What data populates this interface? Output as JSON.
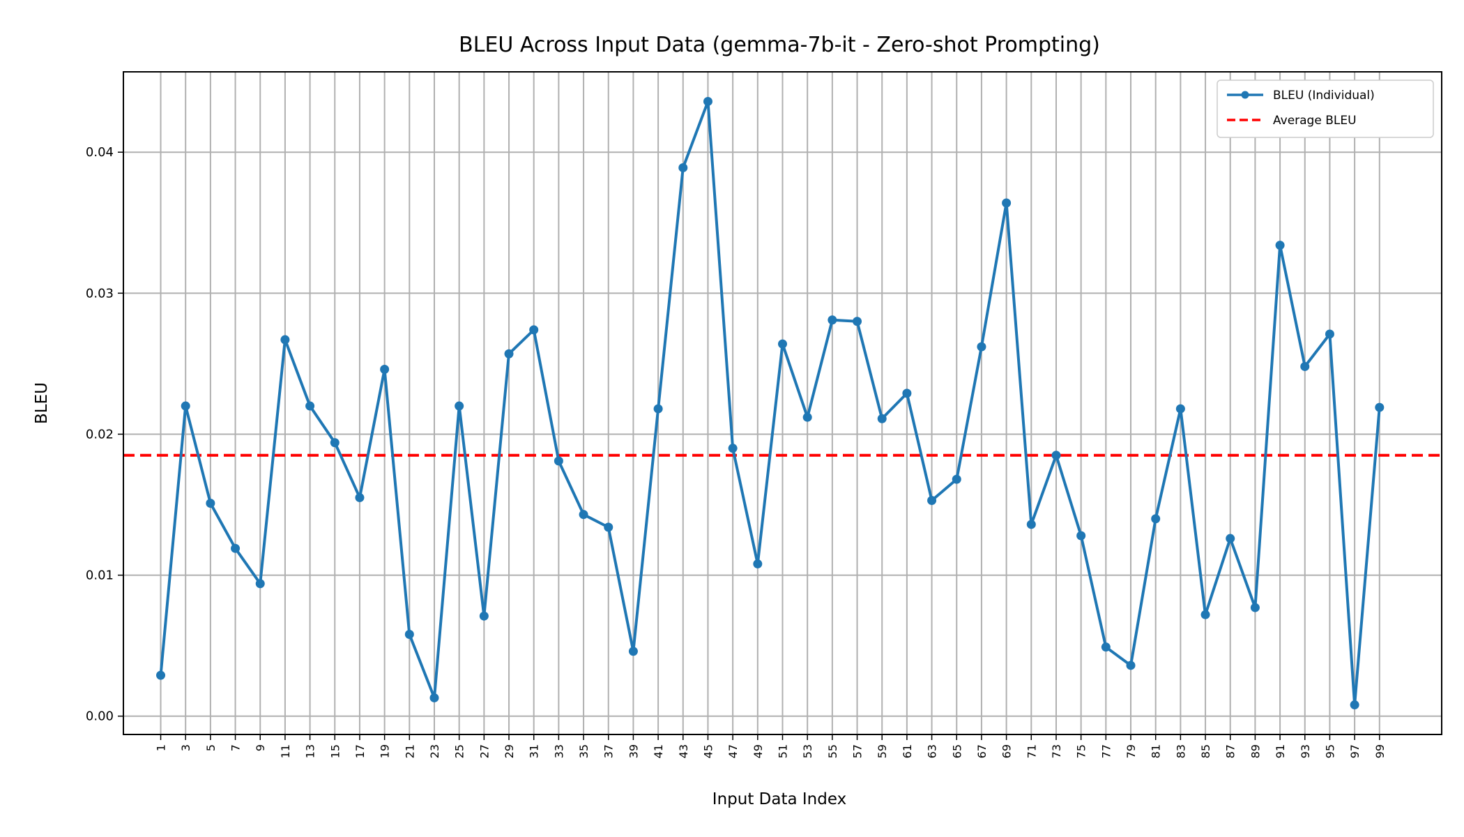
{
  "chart_data": {
    "type": "line",
    "title": "BLEU Across Input Data (gemma-7b-it - Zero-shot Prompting)",
    "xlabel": "Input Data Index",
    "ylabel": "BLEU",
    "ylim": [
      -0.0013,
      0.0457
    ],
    "xlim": [
      -1.5,
      51.5
    ],
    "grid": true,
    "legend_position": "top-right",
    "y_ticks": [
      "0.00",
      "0.01",
      "0.02",
      "0.03",
      "0.04"
    ],
    "y_tick_values": [
      0,
      0.01,
      0.02,
      0.03,
      0.04
    ],
    "categories": [
      "1",
      "3",
      "5",
      "7",
      "9",
      "11",
      "13",
      "15",
      "17",
      "19",
      "21",
      "23",
      "25",
      "27",
      "29",
      "31",
      "33",
      "35",
      "37",
      "39",
      "41",
      "43",
      "45",
      "47",
      "49",
      "51",
      "53",
      "55",
      "57",
      "59",
      "61",
      "63",
      "65",
      "67",
      "69",
      "71",
      "73",
      "75",
      "77",
      "79",
      "81",
      "83",
      "85",
      "87",
      "89",
      "91",
      "93",
      "95",
      "97",
      "99"
    ],
    "series": [
      {
        "name": "BLEU (Individual)",
        "style": "line-marker",
        "color": "#1f77b4",
        "values": [
          0.0029,
          0.022,
          0.0151,
          0.0119,
          0.0094,
          0.0267,
          0.022,
          0.0194,
          0.0155,
          0.0246,
          0.0058,
          0.0013,
          0.022,
          0.0071,
          0.0257,
          0.0274,
          0.0181,
          0.0143,
          0.0134,
          0.0046,
          0.0218,
          0.0389,
          0.0436,
          0.019,
          0.0108,
          0.0264,
          0.0212,
          0.0281,
          0.028,
          0.0211,
          0.0229,
          0.0153,
          0.0168,
          0.0262,
          0.0364,
          0.0136,
          0.0185,
          0.0128,
          0.0049,
          0.0036,
          0.014,
          0.0218,
          0.0072,
          0.0126,
          0.0077,
          0.0334,
          0.0248,
          0.0271,
          0.0008,
          0.0219
        ]
      },
      {
        "name": "Average BLEU",
        "style": "dashed-hline",
        "color": "#ff0000",
        "value": 0.0185
      }
    ]
  }
}
